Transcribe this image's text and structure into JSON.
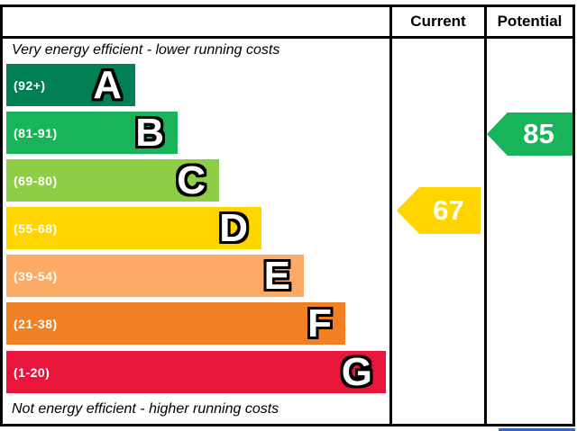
{
  "header": {
    "current_label": "Current",
    "potential_label": "Potential"
  },
  "captions": {
    "top": "Very energy efficient - lower running costs",
    "bottom": "Not energy efficient - higher running costs"
  },
  "bands": [
    {
      "letter": "A",
      "range_label": "(92+)",
      "color": "#008054"
    },
    {
      "letter": "B",
      "range_label": "(81-91)",
      "color": "#19b459"
    },
    {
      "letter": "C",
      "range_label": "(69-80)",
      "color": "#8dce46"
    },
    {
      "letter": "D",
      "range_label": "(55-68)",
      "color": "#ffd500"
    },
    {
      "letter": "E",
      "range_label": "(39-54)",
      "color": "#fcaa65"
    },
    {
      "letter": "F",
      "range_label": "(21-38)",
      "color": "#ef8023"
    },
    {
      "letter": "G",
      "range_label": "(1-20)",
      "color": "#e9153b"
    }
  ],
  "ratings": {
    "current": {
      "value": "67",
      "band": "D",
      "arrow_color": "#ffd500"
    },
    "potential": {
      "value": "85",
      "band": "B",
      "arrow_color": "#19b459"
    }
  },
  "eu_strip_color": "#3a63c2",
  "chart_data": {
    "type": "bar",
    "orientation": "horizontal",
    "title": "",
    "columns": [
      "Current",
      "Potential"
    ],
    "top_caption": "Very energy efficient - lower running costs",
    "bottom_caption": "Not energy efficient - higher running costs",
    "bands": [
      {
        "letter": "A",
        "range": "92+",
        "color": "#008054"
      },
      {
        "letter": "B",
        "range": "81-91",
        "color": "#19b459"
      },
      {
        "letter": "C",
        "range": "69-80",
        "color": "#8dce46"
      },
      {
        "letter": "D",
        "range": "55-68",
        "color": "#ffd500"
      },
      {
        "letter": "E",
        "range": "39-54",
        "color": "#fcaa65"
      },
      {
        "letter": "F",
        "range": "21-38",
        "color": "#ef8023"
      },
      {
        "letter": "G",
        "range": "1-20",
        "color": "#e9153b"
      }
    ],
    "current": 67,
    "current_band": "D",
    "potential": 85,
    "potential_band": "B",
    "legend_position": "none",
    "grid": false
  }
}
